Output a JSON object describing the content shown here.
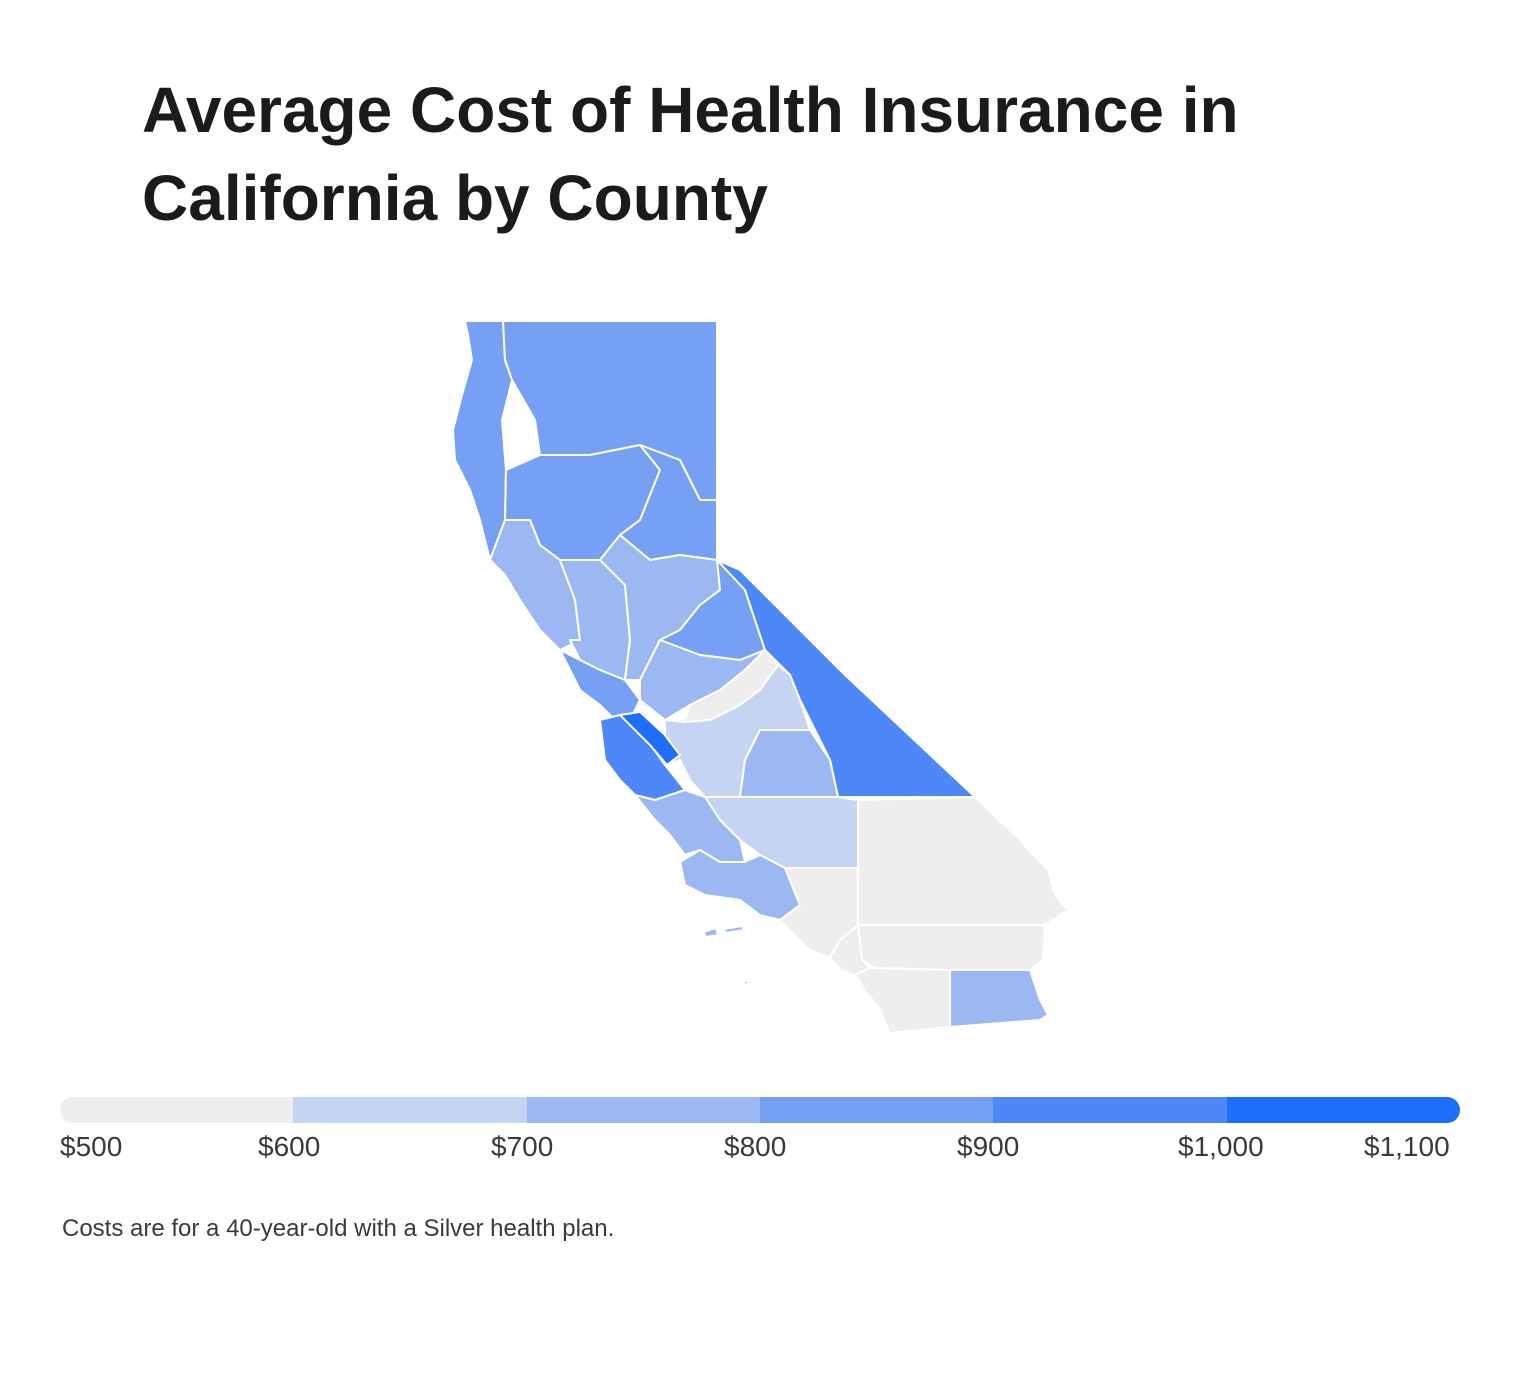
{
  "title": "Average Cost of Health Insurance in California by County",
  "footnote": "Costs are for a 40-year-old with a Silver health plan.",
  "colors": {
    "c500": "#eeeeee",
    "c600": "#c6d4f3",
    "c700": "#9cb8f3",
    "c800": "#76a0f4",
    "c900": "#4d87f8",
    "c1000": "#1d6efb"
  },
  "legend": {
    "ticks": [
      "$500",
      "$600",
      "$700",
      "$800",
      "$900",
      "$1,000",
      "$1,100"
    ],
    "bins": [
      {
        "min": 500,
        "max": 600,
        "color": "#eeeeee"
      },
      {
        "min": 600,
        "max": 700,
        "color": "#c6d4f3"
      },
      {
        "min": 700,
        "max": 800,
        "color": "#9cb8f3"
      },
      {
        "min": 800,
        "max": 900,
        "color": "#76a0f4"
      },
      {
        "min": 900,
        "max": 1000,
        "color": "#4d87f8"
      },
      {
        "min": 1000,
        "max": 1100,
        "color": "#1d6efb"
      }
    ]
  },
  "regions": [
    {
      "id": "far-north-coast",
      "bin": "800-900"
    },
    {
      "id": "far-north-east",
      "bin": "800-900"
    },
    {
      "id": "north-sacramento-valley",
      "bin": "800-900"
    },
    {
      "id": "sierra-north",
      "bin": "800-900"
    },
    {
      "id": "north-bay",
      "bin": "700-800"
    },
    {
      "id": "east-bay",
      "bin": "700-800"
    },
    {
      "id": "central-valley-north",
      "bin": "700-800"
    },
    {
      "id": "sierra-central",
      "bin": "800-900"
    },
    {
      "id": "mono-inyo",
      "bin": "900-1000"
    },
    {
      "id": "central-coast-north",
      "bin": "800-900"
    },
    {
      "id": "monterey",
      "bin": "900-1000"
    },
    {
      "id": "san-benito",
      "bin": "1000-1100"
    },
    {
      "id": "fresno-mariposa",
      "bin": "700-800"
    },
    {
      "id": "fresno-central",
      "bin": "500-600"
    },
    {
      "id": "fresno-kings-tulare-west",
      "bin": "600-700"
    },
    {
      "id": "tulare",
      "bin": "700-800"
    },
    {
      "id": "kern",
      "bin": "600-700"
    },
    {
      "id": "san-luis-obispo-santa-barbara",
      "bin": "700-800"
    },
    {
      "id": "ventura",
      "bin": "700-800"
    },
    {
      "id": "los-angeles",
      "bin": "500-600"
    },
    {
      "id": "san-bernardino",
      "bin": "500-600"
    },
    {
      "id": "riverside",
      "bin": "500-600"
    },
    {
      "id": "orange",
      "bin": "500-600"
    },
    {
      "id": "san-diego",
      "bin": "500-600"
    },
    {
      "id": "imperial",
      "bin": "700-800"
    },
    {
      "id": "channel-islands",
      "bin": "700-800"
    }
  ]
}
